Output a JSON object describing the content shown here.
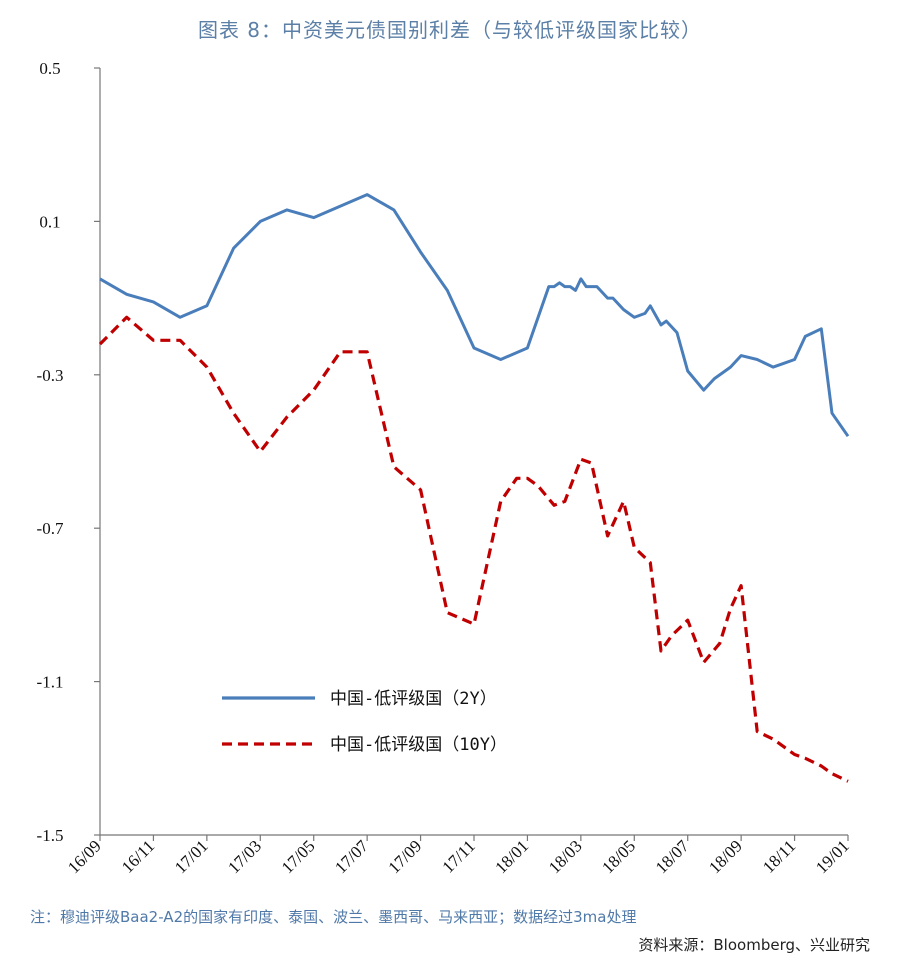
{
  "header": {
    "title": "图表 8：中资美元债国别利差（与较低评级国家比较）"
  },
  "footer": {
    "note": "注：穆迪评级Baa2-A2的国家有印度、泰国、波兰、墨西哥、马来西亚；数据经过3ma处理",
    "source": "资料来源：Bloomberg、兴业研究"
  },
  "colors": {
    "series_2y": "#4a7ebb",
    "series_10y": "#c00000"
  },
  "chart_data": {
    "type": "line",
    "title": "图表 8：中资美元债国别利差（与较低评级国家比较）",
    "xlabel": "",
    "ylabel": "",
    "ylim": [
      -1.5,
      0.5
    ],
    "yticks": [
      "0.5",
      "0.1",
      "-0.3",
      "-0.7",
      "-1.1",
      "-1.5"
    ],
    "ytick_values": [
      0.5,
      0.1,
      -0.3,
      -0.7,
      -1.1,
      -1.5
    ],
    "categories": [
      "16/09",
      "16/11",
      "17/01",
      "17/03",
      "17/05",
      "17/07",
      "17/09",
      "17/11",
      "18/01",
      "18/03",
      "18/05",
      "18/07",
      "18/09",
      "18/11",
      "19/01"
    ],
    "legend": {
      "placement": "lower-left",
      "entries": [
        "中国-低评级国（2Y）",
        "中国-低评级国（10Y）"
      ]
    },
    "series": [
      {
        "name": "中国-低评级国（2Y）",
        "style": "solid",
        "x": [
          0,
          0.5,
          1,
          1.5,
          2,
          2.5,
          3,
          3.5,
          4,
          4.5,
          5,
          5.5,
          6,
          6.5,
          7,
          7.5,
          8,
          8.4,
          8.5,
          8.6,
          8.7,
          8.8,
          8.9,
          9,
          9.1,
          9.2,
          9.3,
          9.5,
          9.6,
          9.8,
          10,
          10.2,
          10.3,
          10.5,
          10.6,
          10.8,
          11,
          11.3,
          11.5,
          11.7,
          11.8,
          12,
          12.3,
          12.6,
          12.8,
          13,
          13.2,
          13.5,
          13.7,
          14
        ],
        "values": [
          -0.05,
          -0.09,
          -0.11,
          -0.15,
          -0.12,
          0.03,
          0.1,
          0.13,
          0.11,
          0.14,
          0.17,
          0.13,
          0.02,
          -0.08,
          -0.23,
          -0.26,
          -0.23,
          -0.07,
          -0.07,
          -0.06,
          -0.07,
          -0.07,
          -0.08,
          -0.05,
          -0.07,
          -0.07,
          -0.07,
          -0.1,
          -0.1,
          -0.13,
          -0.15,
          -0.14,
          -0.12,
          -0.17,
          -0.16,
          -0.19,
          -0.29,
          -0.34,
          -0.31,
          -0.29,
          -0.28,
          -0.25,
          -0.26,
          -0.28,
          -0.27,
          -0.26,
          -0.2,
          -0.18,
          -0.4,
          -0.46
        ]
      },
      {
        "name": "中国-低评级国（10Y）",
        "style": "dashed",
        "x": [
          0,
          0.5,
          1,
          1.5,
          2,
          2.5,
          3,
          3.5,
          4,
          4.5,
          5,
          5.5,
          6,
          6.5,
          7,
          7.5,
          7.8,
          8,
          8.2,
          8.5,
          8.7,
          9,
          9.2,
          9.5,
          9.8,
          10,
          10.3,
          10.5,
          10.7,
          11,
          11.3,
          11.6,
          11.8,
          12,
          12.3,
          12.6,
          12.8,
          13,
          13.2,
          13.5,
          13.7,
          14
        ],
        "values": [
          -0.22,
          -0.15,
          -0.21,
          -0.21,
          -0.28,
          -0.4,
          -0.5,
          -0.41,
          -0.34,
          -0.24,
          -0.24,
          -0.54,
          -0.6,
          -0.92,
          -0.95,
          -0.63,
          -0.57,
          -0.57,
          -0.59,
          -0.64,
          -0.63,
          -0.52,
          -0.53,
          -0.72,
          -0.63,
          -0.75,
          -0.79,
          -1.02,
          -0.98,
          -0.94,
          -1.05,
          -1.0,
          -0.91,
          -0.85,
          -1.23,
          -1.25,
          -1.27,
          -1.29,
          -1.3,
          -1.32,
          -1.34,
          -1.36
        ]
      }
    ]
  }
}
